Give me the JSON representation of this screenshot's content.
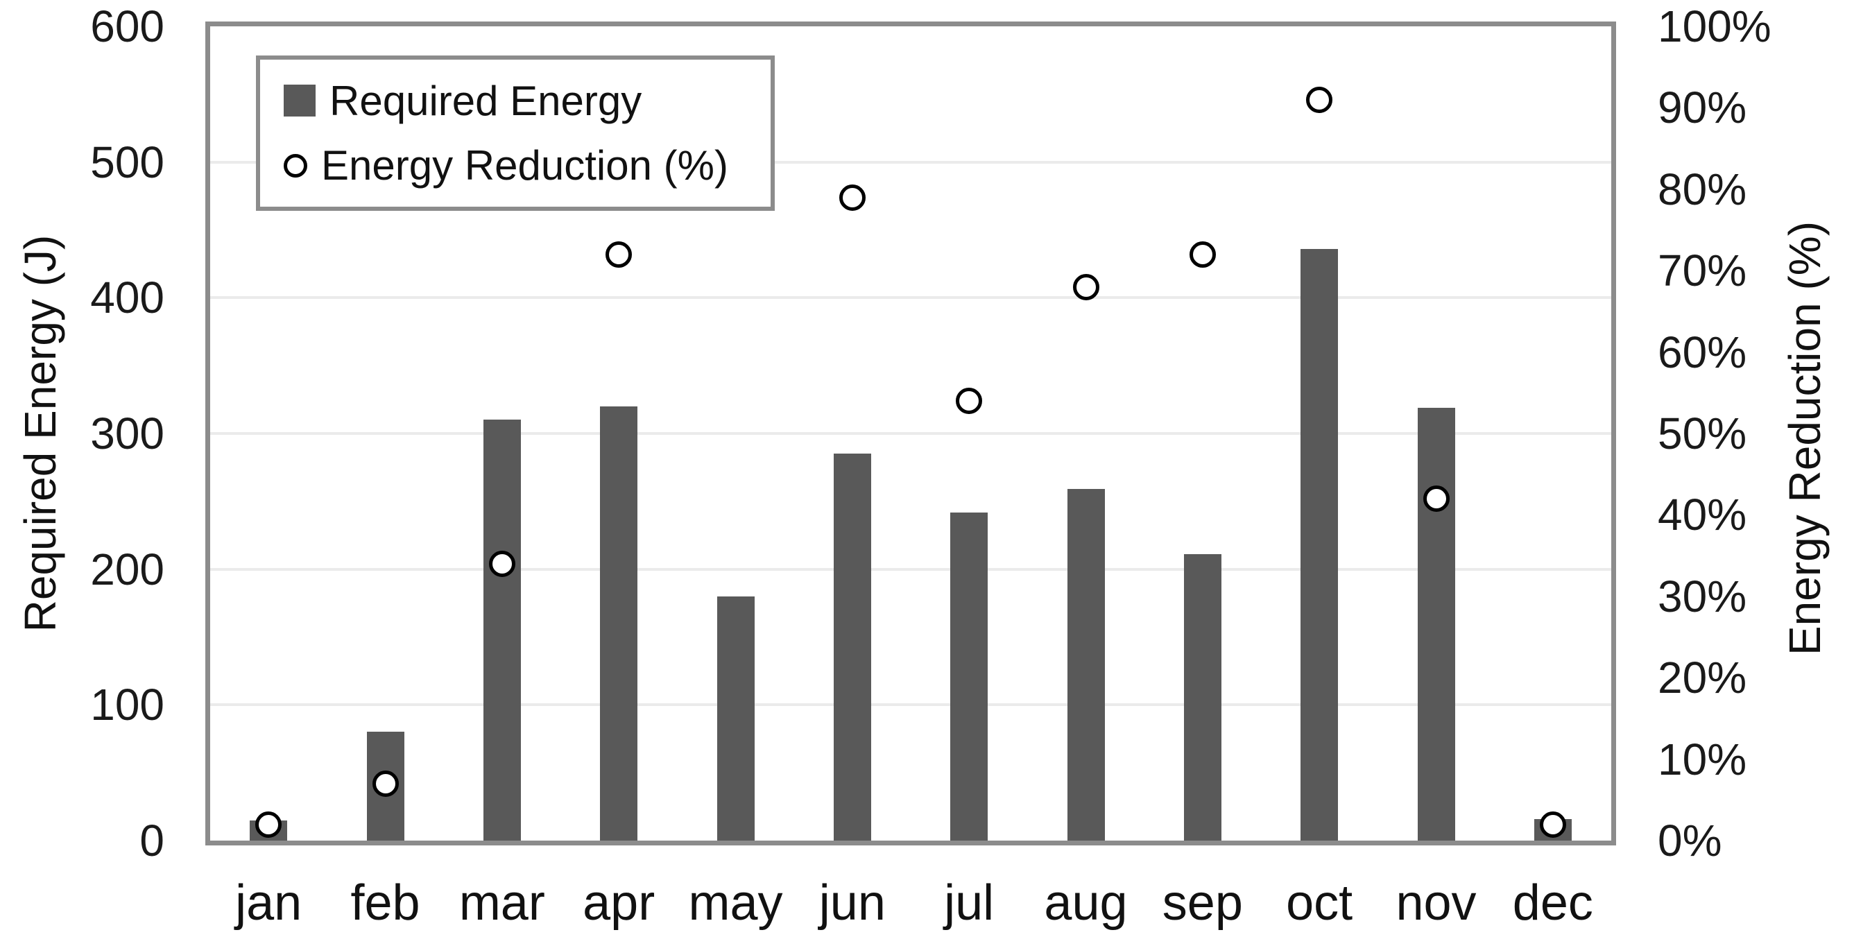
{
  "chart_data": {
    "type": "combo-bar-scatter",
    "categories": [
      "jan",
      "feb",
      "mar",
      "apr",
      "may",
      "jun",
      "jul",
      "aug",
      "sep",
      "oct",
      "nov",
      "dec"
    ],
    "series": [
      {
        "name": "Required Energy",
        "type": "bar",
        "axis": "left",
        "values": [
          15,
          80,
          310,
          320,
          180,
          285,
          242,
          259,
          211,
          436,
          319,
          16
        ]
      },
      {
        "name": "Energy Reduction (%)",
        "type": "scatter",
        "axis": "right",
        "values": [
          2,
          7,
          34,
          72,
          null,
          79,
          54,
          68,
          72,
          91,
          42,
          2
        ]
      }
    ],
    "left_axis": {
      "title": "Required Energy (J)",
      "min": 0,
      "max": 600,
      "step": 100,
      "tick_labels": [
        "0",
        "100",
        "200",
        "300",
        "400",
        "500",
        "600"
      ]
    },
    "right_axis": {
      "title": "Energy Reduction (%)",
      "min": 0,
      "max": 100,
      "step": 10,
      "tick_labels": [
        "0%",
        "10%",
        "20%",
        "30%",
        "40%",
        "50%",
        "60%",
        "70%",
        "80%",
        "90%",
        "100%"
      ]
    },
    "legend": {
      "position": "top-left",
      "items": [
        {
          "label": "Required Energy",
          "marker": "square"
        },
        {
          "label": "Energy Reduction (%)",
          "marker": "open-circle"
        }
      ]
    },
    "grid": true,
    "colors": {
      "bar": "#595959",
      "marker_fill": "#ffffff",
      "marker_stroke": "#000000",
      "gridline": "#ebebeb",
      "plot_border": "#8c8c8c",
      "text": "#1a1a1a"
    }
  }
}
